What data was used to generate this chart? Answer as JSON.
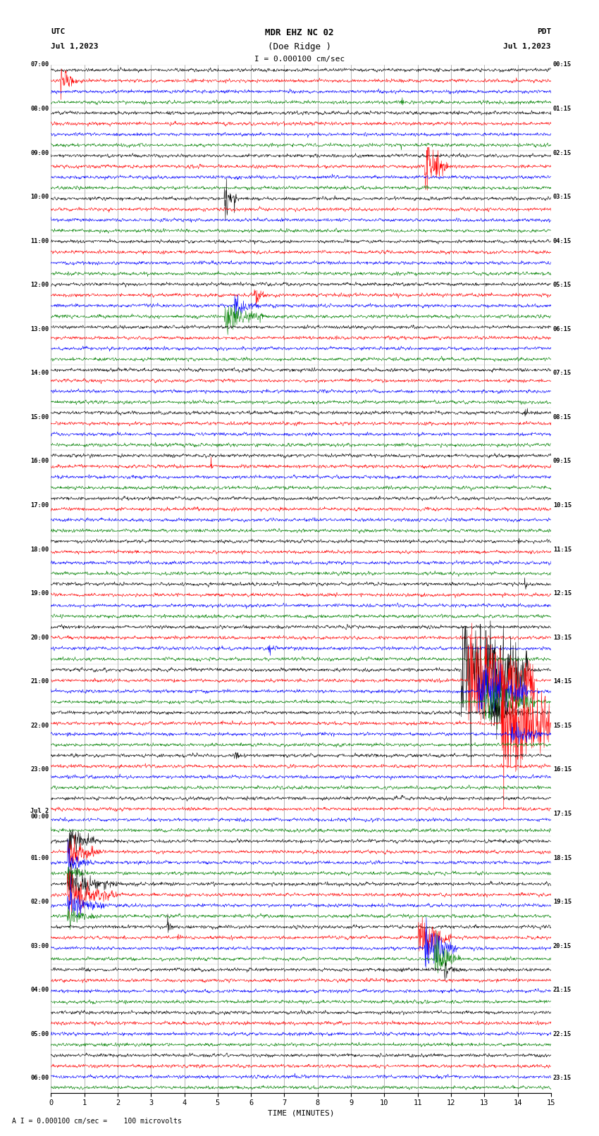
{
  "title_line1": "MDR EHZ NC 02",
  "title_line2": "(Doe Ridge )",
  "scale_label": "I = 0.000100 cm/sec",
  "bottom_label": "A I = 0.000100 cm/sec =    100 microvolts",
  "xlabel": "TIME (MINUTES)",
  "utc_label1": "UTC",
  "utc_label2": "Jul 1,2023",
  "pdt_label1": "PDT",
  "pdt_label2": "Jul 1,2023",
  "left_times_utc": [
    "07:00",
    "",
    "",
    "08:00",
    "",
    "",
    "09:00",
    "",
    "",
    "10:00",
    "",
    "",
    "11:00",
    "",
    "",
    "12:00",
    "",
    "",
    "13:00",
    "",
    "",
    "14:00",
    "",
    "",
    "15:00",
    "",
    "",
    "16:00",
    "",
    "",
    "17:00",
    "",
    "",
    "18:00",
    "",
    "",
    "19:00",
    "",
    "",
    "20:00",
    "",
    "",
    "21:00",
    "",
    "",
    "22:00",
    "",
    "",
    "23:00",
    "",
    "",
    "Jul 2\n00:00",
    "",
    "",
    "01:00",
    "",
    "",
    "02:00",
    "",
    "",
    "03:00",
    "",
    "",
    "04:00",
    "",
    "",
    "05:00",
    "",
    "",
    "06:00",
    ""
  ],
  "right_times_pdt": [
    "00:15",
    "",
    "",
    "01:15",
    "",
    "",
    "02:15",
    "",
    "",
    "03:15",
    "",
    "",
    "04:15",
    "",
    "",
    "05:15",
    "",
    "",
    "06:15",
    "",
    "",
    "07:15",
    "",
    "",
    "08:15",
    "",
    "",
    "09:15",
    "",
    "",
    "10:15",
    "",
    "",
    "11:15",
    "",
    "",
    "12:15",
    "",
    "",
    "13:15",
    "",
    "",
    "14:15",
    "",
    "",
    "15:15",
    "",
    "",
    "16:15",
    "",
    "",
    "17:15",
    "",
    "",
    "18:15",
    "",
    "",
    "19:15",
    "",
    "",
    "20:15",
    "",
    "",
    "21:15",
    "",
    "",
    "22:15",
    "",
    "",
    "23:15",
    ""
  ],
  "n_rows": 96,
  "n_minutes": 15,
  "colors_cycle": [
    "black",
    "red",
    "blue",
    "green"
  ],
  "bg_color": "#ffffff",
  "plot_bg": "#ffffff",
  "grid_color": "#888888",
  "seed": 42,
  "samples_per_minute": 100,
  "noise_amp": 0.06,
  "special_events": [
    {
      "row": 1,
      "t": 0.3,
      "dur": 0.6,
      "amp": 0.55,
      "decay": 3.0
    },
    {
      "row": 3,
      "t": 10.5,
      "dur": 0.3,
      "amp": 0.25,
      "decay": 5.0
    },
    {
      "row": 7,
      "t": 10.5,
      "dur": 0.2,
      "amp": 0.2,
      "decay": 5.0
    },
    {
      "row": 9,
      "t": 11.2,
      "dur": 0.8,
      "amp": 0.8,
      "decay": 2.5
    },
    {
      "row": 9,
      "t": 11.5,
      "dur": 0.5,
      "amp": 0.6,
      "decay": 2.0
    },
    {
      "row": 12,
      "t": 5.2,
      "dur": 0.4,
      "amp": 0.9,
      "decay": 3.0
    },
    {
      "row": 12,
      "t": 5.5,
      "dur": 0.2,
      "amp": 0.4,
      "decay": 4.0
    },
    {
      "row": 21,
      "t": 6.1,
      "dur": 0.5,
      "amp": 0.35,
      "decay": 3.0
    },
    {
      "row": 22,
      "t": 5.5,
      "dur": 0.8,
      "amp": 0.45,
      "decay": 2.5
    },
    {
      "row": 23,
      "t": 5.2,
      "dur": 1.2,
      "amp": 0.55,
      "decay": 2.0
    },
    {
      "row": 32,
      "t": 14.2,
      "dur": 0.3,
      "amp": 0.25,
      "decay": 5.0
    },
    {
      "row": 37,
      "t": 4.8,
      "dur": 0.2,
      "amp": 0.2,
      "decay": 5.0
    },
    {
      "row": 44,
      "t": 14.0,
      "dur": 0.25,
      "amp": 0.22,
      "decay": 5.0
    },
    {
      "row": 48,
      "t": 14.2,
      "dur": 0.3,
      "amp": 0.3,
      "decay": 4.0
    },
    {
      "row": 54,
      "t": 6.5,
      "dur": 0.4,
      "amp": 0.3,
      "decay": 3.0
    },
    {
      "row": 56,
      "t": 12.3,
      "dur": 2.0,
      "amp": 1.8,
      "decay": 0.8
    },
    {
      "row": 57,
      "t": 12.5,
      "dur": 2.0,
      "amp": 1.5,
      "decay": 0.9
    },
    {
      "row": 58,
      "t": 12.8,
      "dur": 1.5,
      "amp": 1.0,
      "decay": 1.2
    },
    {
      "row": 59,
      "t": 13.0,
      "dur": 1.5,
      "amp": 0.8,
      "decay": 1.5
    },
    {
      "row": 60,
      "t": 13.2,
      "dur": 1.0,
      "amp": 0.6,
      "decay": 2.0
    },
    {
      "row": 61,
      "t": 13.5,
      "dur": 1.5,
      "amp": 1.8,
      "decay": 0.8
    },
    {
      "row": 62,
      "t": 13.8,
      "dur": 1.0,
      "amp": 0.5,
      "decay": 2.0
    },
    {
      "row": 64,
      "t": 5.5,
      "dur": 0.3,
      "amp": 0.3,
      "decay": 4.0
    },
    {
      "row": 68,
      "t": 10.5,
      "dur": 0.2,
      "amp": 0.2,
      "decay": 5.0
    },
    {
      "row": 72,
      "t": 0.5,
      "dur": 1.0,
      "amp": 0.5,
      "decay": 2.0
    },
    {
      "row": 73,
      "t": 0.5,
      "dur": 1.0,
      "amp": 0.6,
      "decay": 2.0
    },
    {
      "row": 74,
      "t": 0.5,
      "dur": 0.8,
      "amp": 0.5,
      "decay": 2.5
    },
    {
      "row": 75,
      "t": 0.5,
      "dur": 0.8,
      "amp": 0.4,
      "decay": 2.5
    },
    {
      "row": 76,
      "t": 0.5,
      "dur": 1.5,
      "amp": 0.55,
      "decay": 2.0
    },
    {
      "row": 77,
      "t": 0.5,
      "dur": 1.5,
      "amp": 0.65,
      "decay": 2.0
    },
    {
      "row": 78,
      "t": 0.5,
      "dur": 1.2,
      "amp": 0.5,
      "decay": 2.0
    },
    {
      "row": 79,
      "t": 0.5,
      "dur": 1.0,
      "amp": 0.4,
      "decay": 2.5
    },
    {
      "row": 80,
      "t": 3.5,
      "dur": 0.3,
      "amp": 0.3,
      "decay": 4.0
    },
    {
      "row": 81,
      "t": 3.8,
      "dur": 0.3,
      "amp": 0.28,
      "decay": 4.0
    },
    {
      "row": 81,
      "t": 11.0,
      "dur": 1.0,
      "amp": 1.0,
      "decay": 2.0
    },
    {
      "row": 82,
      "t": 11.2,
      "dur": 1.0,
      "amp": 0.9,
      "decay": 2.0
    },
    {
      "row": 83,
      "t": 11.5,
      "dur": 0.8,
      "amp": 0.7,
      "decay": 2.5
    },
    {
      "row": 84,
      "t": 11.8,
      "dur": 0.5,
      "amp": 0.4,
      "decay": 3.0
    }
  ]
}
